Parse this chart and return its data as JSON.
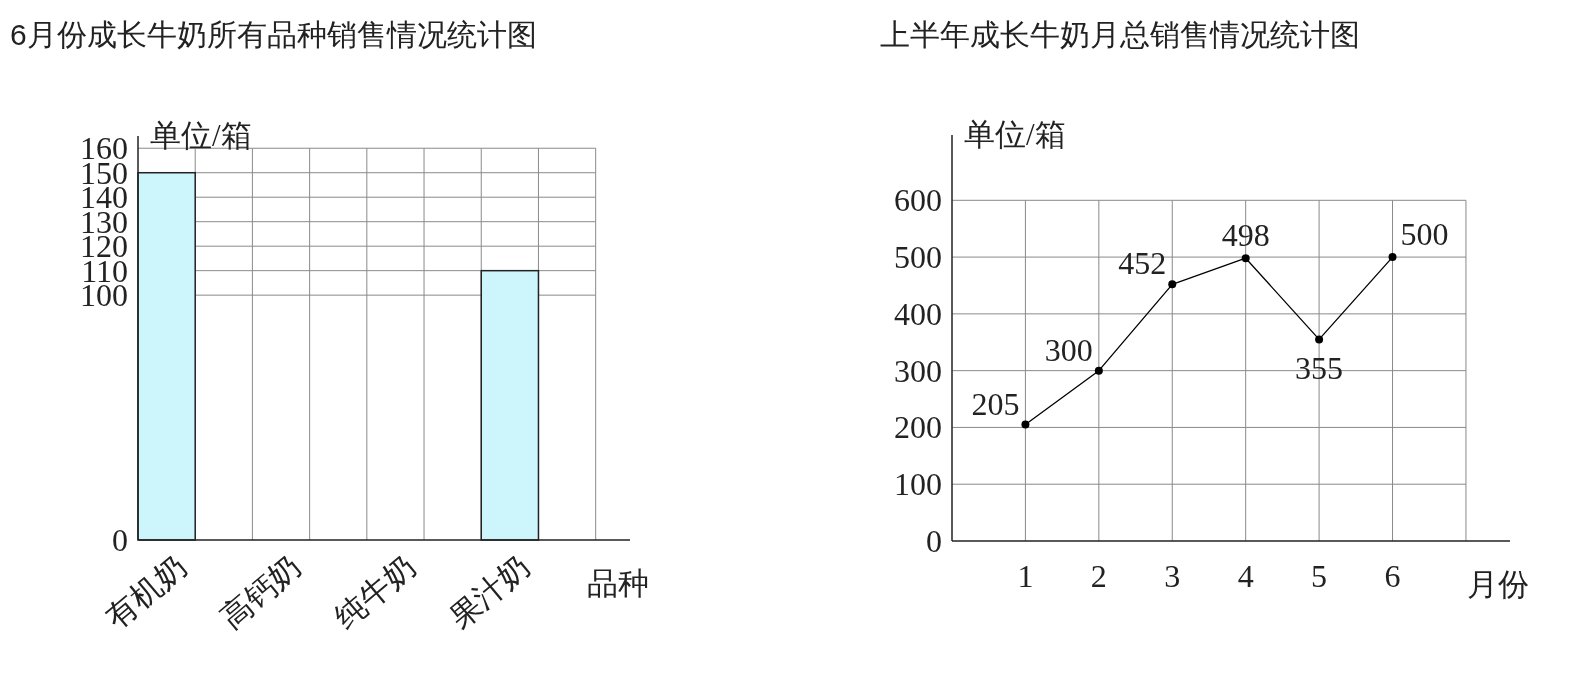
{
  "chart_data": [
    {
      "type": "bar",
      "title": "6月份成长牛奶所有品种销售情况统计图",
      "xlabel": "品种",
      "ylabel": "单位/箱",
      "categories": [
        "有机奶",
        "高钙奶",
        "纯牛奶",
        "果汁奶"
      ],
      "values": [
        150,
        null,
        null,
        110
      ],
      "color": "#ccf5fc",
      "ylim": [
        0,
        165
      ],
      "yticks": [
        0,
        100,
        110,
        120,
        130,
        140,
        150,
        160
      ],
      "grid": true
    },
    {
      "type": "line",
      "title": "上半年成长牛奶月总销售情况统计图",
      "xlabel": "月份",
      "ylabel": "单位/箱",
      "x": [
        1,
        2,
        3,
        4,
        5,
        6
      ],
      "values": [
        205,
        300,
        452,
        498,
        355,
        500
      ],
      "color": "#000000",
      "marker": "circle",
      "xlim": [
        0,
        7.6
      ],
      "xticks": [
        1,
        2,
        3,
        4,
        5,
        6,
        {
          "value": 7,
          "label": null
        }
      ],
      "ylim": [
        0,
        715
      ],
      "yticks": [
        0,
        100,
        200,
        300,
        400,
        500,
        600
      ],
      "grid": true,
      "data_labels": true
    }
  ]
}
